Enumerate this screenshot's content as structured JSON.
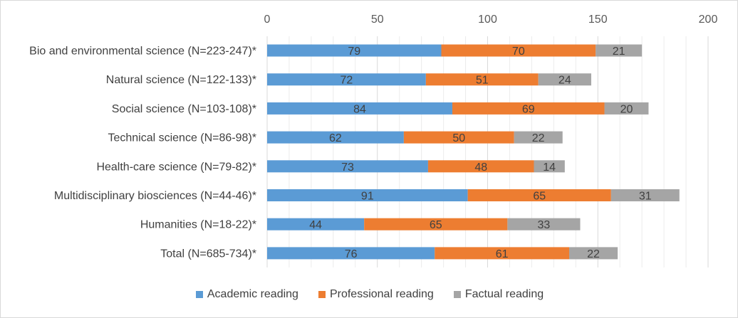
{
  "chart_data": {
    "type": "bar",
    "orientation": "horizontal",
    "stacked": true,
    "categories": [
      "Bio and environmental science (N=223-247)*",
      "Natural science (N=122-133)*",
      "Social science (N=103-108)*",
      "Technical science (N=86-98)*",
      "Health-care science (N=79-82)*",
      "Multidisciplinary biosciences (N=44-46)*",
      "Humanities (N=18-22)*",
      "Total (N=685-734)*"
    ],
    "series": [
      {
        "name": "Academic reading",
        "color": "#5b9bd5",
        "values": [
          79,
          72,
          84,
          62,
          73,
          91,
          44,
          76
        ]
      },
      {
        "name": "Professional reading",
        "color": "#ed7d31",
        "values": [
          70,
          51,
          69,
          50,
          48,
          65,
          65,
          61
        ]
      },
      {
        "name": "Factual reading",
        "color": "#a5a5a5",
        "values": [
          21,
          24,
          20,
          22,
          14,
          31,
          33,
          22
        ]
      }
    ],
    "xlim": [
      0,
      200
    ],
    "xticks": [
      0,
      50,
      100,
      150,
      200
    ],
    "xaxis_position": "top",
    "grid": "vertical",
    "legend": "bottom",
    "title": "",
    "xlabel": "",
    "ylabel": ""
  }
}
